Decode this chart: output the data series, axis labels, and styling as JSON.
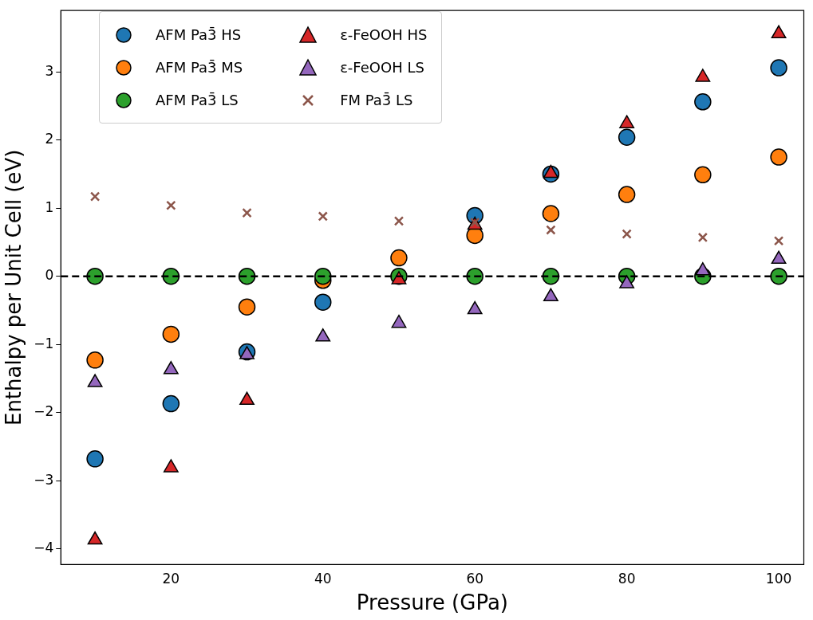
{
  "chart_data": {
    "type": "scatter",
    "xlabel": "Pressure (GPa)",
    "ylabel": "Enthalpy per Unit Cell (eV)",
    "x": [
      10,
      20,
      30,
      40,
      50,
      60,
      70,
      80,
      90,
      100
    ],
    "xlim": [
      5.5,
      103.3
    ],
    "xticks": [
      20,
      40,
      60,
      80,
      100
    ],
    "ylim": [
      -4.23,
      3.9
    ],
    "yticks": [
      {
        "value": -4,
        "label": "−4"
      },
      {
        "value": -3,
        "label": "−3"
      },
      {
        "value": -2,
        "label": "−2"
      },
      {
        "value": -1,
        "label": "−1"
      },
      0,
      1,
      2,
      3
    ],
    "grid": false,
    "legend": "top left",
    "ref_lines": [
      {
        "axis": "y",
        "value": 0,
        "color": "#000000",
        "line_style": "dashed"
      }
    ],
    "series": [
      {
        "name": "AFM Pa3̄ HS",
        "color": "#1f77b4",
        "marker": "circle",
        "values": [
          -2.68,
          -1.87,
          -1.11,
          -0.38,
          null,
          0.89,
          1.5,
          2.04,
          2.56,
          3.06
        ]
      },
      {
        "name": "AFM Pa3̄ MS",
        "color": "#ff7f0e",
        "marker": "circle",
        "values": [
          -1.23,
          -0.85,
          -0.45,
          -0.06,
          0.27,
          0.6,
          0.92,
          1.2,
          1.49,
          1.75
        ]
      },
      {
        "name": "AFM Pa3̄ LS",
        "color": "#2ca02c",
        "marker": "circle",
        "values": [
          0,
          0,
          0,
          0,
          0,
          0,
          0,
          0,
          0,
          0
        ]
      },
      {
        "name": "ε-FeOOH HS",
        "color": "#d62728",
        "marker": "triangle",
        "values": [
          -3.87,
          -2.81,
          -1.82,
          null,
          -0.05,
          0.75,
          1.51,
          2.24,
          2.92,
          3.56
        ]
      },
      {
        "name": "ε-FeOOH LS",
        "color": "#9467bd",
        "marker": "triangle",
        "values": [
          -1.56,
          -1.37,
          -1.15,
          -0.89,
          -0.69,
          -0.49,
          -0.3,
          -0.11,
          0.08,
          0.25
        ]
      },
      {
        "name": "FM Pa3̄ LS",
        "color": "#8c564b",
        "marker": "cross",
        "values": [
          1.17,
          1.04,
          0.93,
          0.88,
          0.81,
          0.79,
          0.68,
          0.62,
          0.57,
          0.52
        ]
      }
    ]
  }
}
